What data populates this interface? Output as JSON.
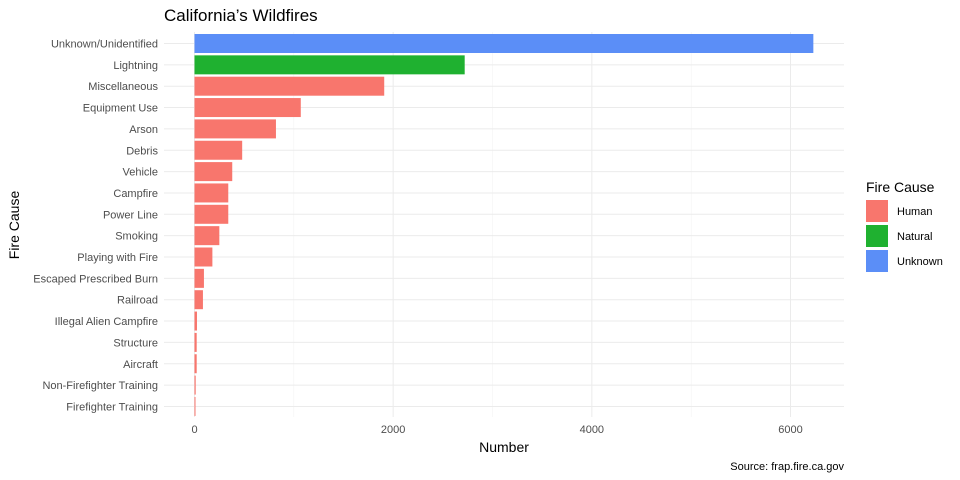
{
  "chart_data": {
    "type": "bar",
    "orientation": "horizontal",
    "title": "California’s Wildfires",
    "xlabel": "Number",
    "ylabel": "Fire Cause",
    "caption": "Source: frap.fire.ca.gov",
    "xlim": [
      0,
      6500
    ],
    "xticks": [
      0,
      2000,
      4000,
      6000
    ],
    "grid": true,
    "legend": {
      "title": "Fire Cause",
      "placement": "right",
      "entries": [
        {
          "name": "Human",
          "color": "#F8766D"
        },
        {
          "name": "Natural",
          "color": "#1FB130"
        },
        {
          "name": "Unknown",
          "color": "#5B8EF7"
        }
      ]
    },
    "bars": [
      {
        "category": "Unknown/Unidentified",
        "value": 6230,
        "group": "Unknown"
      },
      {
        "category": "Lightning",
        "value": 2720,
        "group": "Natural"
      },
      {
        "category": "Miscellaneous",
        "value": 1910,
        "group": "Human"
      },
      {
        "category": "Equipment Use",
        "value": 1070,
        "group": "Human"
      },
      {
        "category": "Arson",
        "value": 820,
        "group": "Human"
      },
      {
        "category": "Debris",
        "value": 480,
        "group": "Human"
      },
      {
        "category": "Vehicle",
        "value": 380,
        "group": "Human"
      },
      {
        "category": "Campfire",
        "value": 340,
        "group": "Human"
      },
      {
        "category": "Power Line",
        "value": 340,
        "group": "Human"
      },
      {
        "category": "Smoking",
        "value": 250,
        "group": "Human"
      },
      {
        "category": "Playing with Fire",
        "value": 180,
        "group": "Human"
      },
      {
        "category": "Escaped Prescribed Burn",
        "value": 95,
        "group": "Human"
      },
      {
        "category": "Railroad",
        "value": 85,
        "group": "Human"
      },
      {
        "category": "Illegal Alien Campfire",
        "value": 25,
        "group": "Human"
      },
      {
        "category": "Structure",
        "value": 22,
        "group": "Human"
      },
      {
        "category": "Aircraft",
        "value": 22,
        "group": "Human"
      },
      {
        "category": "Non-Firefighter Training",
        "value": 12,
        "group": "Human"
      },
      {
        "category": "Firefighter Training",
        "value": 8,
        "group": "Human"
      }
    ]
  }
}
